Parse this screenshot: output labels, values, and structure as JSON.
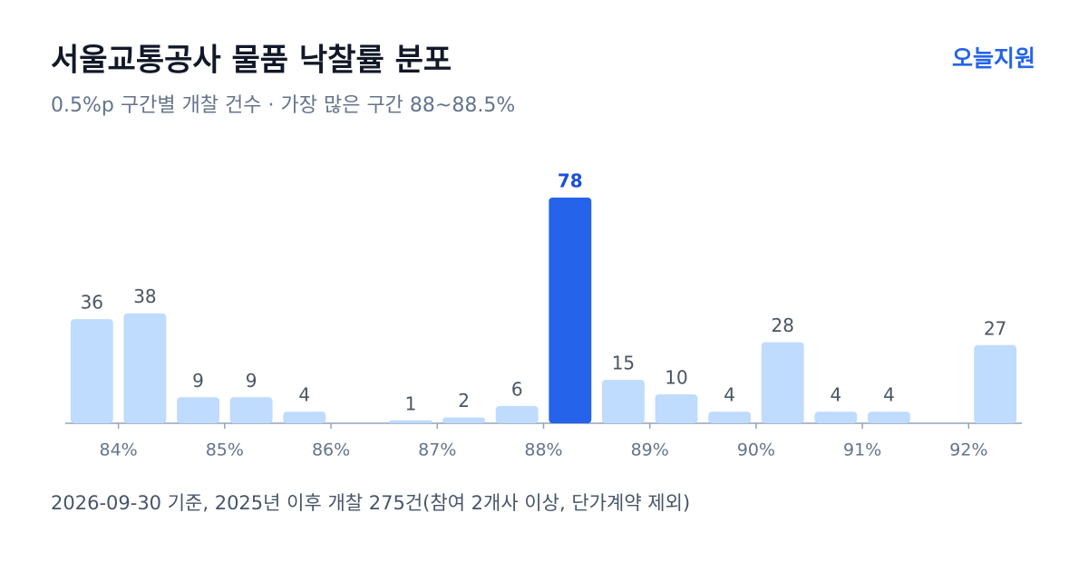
{
  "chart_data": {
    "type": "histogram",
    "title": "서울교통공사 물품 낙찰률 분포",
    "subtitle": "0.5%p 구간별 개찰 건수 · 가장 많은 구간 88~88.5%",
    "brand": "오늘지원",
    "footnote": "2026-09-30 기준, 2025년 이후 개찰 275건(참여 2개사 이상, 단가계약 제외)",
    "bins": [
      83.5,
      84,
      84.5,
      85,
      85.5,
      86,
      86.5,
      87,
      87.5,
      88,
      88.5,
      89,
      89.5,
      90,
      90.5,
      91,
      91.5,
      92,
      92.5
    ],
    "values": [
      36,
      38,
      9,
      9,
      4,
      0,
      1,
      2,
      6,
      78,
      15,
      10,
      4,
      28,
      4,
      4,
      0,
      27
    ],
    "color": "#bfdbfe",
    "highlight_color": "#2563eb",
    "xlim": [
      83.5,
      92.5
    ],
    "xticks": [
      {
        "value": 84,
        "label": "84%"
      },
      {
        "value": 85,
        "label": "85%"
      },
      {
        "value": 86,
        "label": "86%"
      },
      {
        "value": 87,
        "label": "87%"
      },
      {
        "value": 88,
        "label": "88%"
      },
      {
        "value": 89,
        "label": "89%"
      },
      {
        "value": 90,
        "label": "90%"
      },
      {
        "value": 91,
        "label": "91%"
      },
      {
        "value": 92,
        "label": "92%"
      }
    ],
    "ylim": [
      0,
      78
    ]
  }
}
